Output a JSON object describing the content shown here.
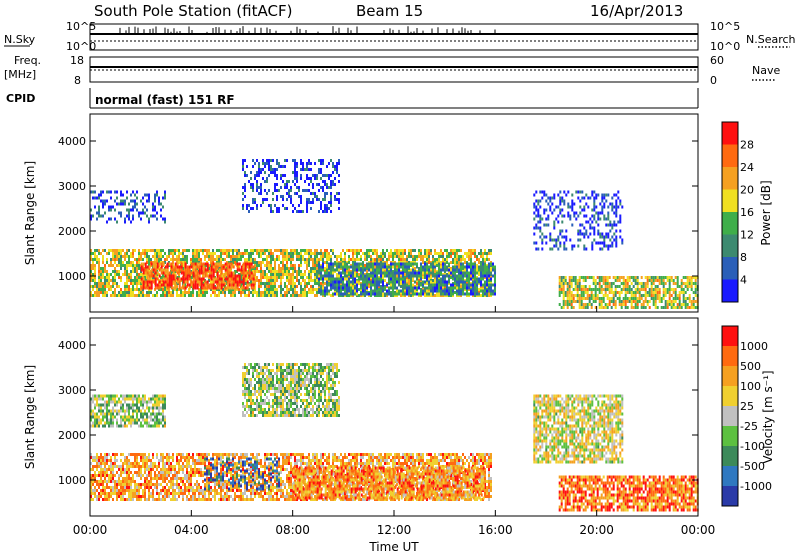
{
  "header": {
    "station": "South Pole Station (fitACF)",
    "beam": "Beam 15",
    "date": "16/Apr/2013"
  },
  "labels": {
    "nsky": "N.Sky",
    "nsearch": "N.Search",
    "freq_line1": "Freq.",
    "freq_line2": "[MHz]",
    "nave": "Nave",
    "cpid": "CPID",
    "cpid_value": "normal (fast) 151 RF",
    "nsky_tick_top": "10^5",
    "nsky_tick_bottom": "10^0",
    "nsearch_tick_top": "10^5",
    "nsearch_tick_bottom": "10^0",
    "freq_tick_top": "18",
    "freq_tick_bottom": "8",
    "nave_tick_top": "60",
    "nave_tick_bottom": "0"
  },
  "chart_data": [
    {
      "type": "heatmap",
      "title": "",
      "xlabel": "Time UT",
      "ylabel": "Slant Range [km]",
      "xlim": [
        0,
        24
      ],
      "ylim": [
        200,
        4600
      ],
      "xticks": [
        "00:00",
        "04:00",
        "08:00",
        "12:00",
        "16:00",
        "20:00",
        "00:00"
      ],
      "yticks": [
        1000,
        2000,
        3000,
        4000
      ],
      "colorbar": {
        "label": "Power [dB]",
        "ticks": [
          "4",
          "8",
          "12",
          "16",
          "20",
          "24",
          "28"
        ],
        "colors": [
          "#1a1aff",
          "#2a5fb8",
          "#3c8a70",
          "#3fae4a",
          "#f0e020",
          "#f5a020",
          "#ff6a10",
          "#ff1010"
        ]
      },
      "regions": [
        {
          "t0": 0.0,
          "t1": 15.8,
          "r0": 550,
          "r1": 1600,
          "level": 0.55
        },
        {
          "t0": 2.0,
          "t1": 6.5,
          "r0": 700,
          "r1": 1300,
          "level": 0.85
        },
        {
          "t0": 9.0,
          "t1": 16.0,
          "r0": 600,
          "r1": 1300,
          "level": 0.3
        },
        {
          "t0": 18.5,
          "t1": 24.0,
          "r0": 300,
          "r1": 1000,
          "level": 0.55
        },
        {
          "t0": 0.0,
          "t1": 3.0,
          "r0": 2200,
          "r1": 2900,
          "level": 0.15
        },
        {
          "t0": 6.0,
          "t1": 9.8,
          "r0": 2400,
          "r1": 3600,
          "level": 0.1
        },
        {
          "t0": 17.5,
          "t1": 21.0,
          "r0": 1600,
          "r1": 2900,
          "level": 0.1
        }
      ]
    },
    {
      "type": "heatmap",
      "title": "",
      "xlabel": "Time UT",
      "ylabel": "Slant Range [km]",
      "xlim": [
        0,
        24
      ],
      "ylim": [
        200,
        4600
      ],
      "xticks": [
        "00:00",
        "04:00",
        "08:00",
        "12:00",
        "16:00",
        "20:00",
        "00:00"
      ],
      "yticks": [
        1000,
        2000,
        3000,
        4000
      ],
      "colorbar": {
        "label": "Velocity [m s^-1]",
        "ticks": [
          "1000",
          "500",
          "100",
          "25",
          "-25",
          "-100",
          "-500",
          "-1000"
        ],
        "colors": [
          "#2a3aa8",
          "#2f78c0",
          "#3c8a5a",
          "#5cc040",
          "#c0c0c0",
          "#f0d030",
          "#f5a020",
          "#ff6a10",
          "#ff1010"
        ]
      },
      "regions": [
        {
          "t0": 0.0,
          "t1": 15.8,
          "r0": 550,
          "r1": 1600,
          "level": 0.7
        },
        {
          "t0": 4.5,
          "t1": 7.5,
          "r0": 800,
          "r1": 1500,
          "level": 0.1
        },
        {
          "t0": 8.0,
          "t1": 15.5,
          "r0": 600,
          "r1": 1300,
          "level": 0.75
        },
        {
          "t0": 18.5,
          "t1": 24.0,
          "r0": 300,
          "r1": 1100,
          "level": 0.8
        },
        {
          "t0": 0.0,
          "t1": 3.0,
          "r0": 2200,
          "r1": 2900,
          "level": 0.45
        },
        {
          "t0": 6.0,
          "t1": 9.8,
          "r0": 2400,
          "r1": 3600,
          "level": 0.45
        },
        {
          "t0": 17.5,
          "t1": 21.0,
          "r0": 1400,
          "r1": 2900,
          "level": 0.55
        }
      ]
    }
  ]
}
